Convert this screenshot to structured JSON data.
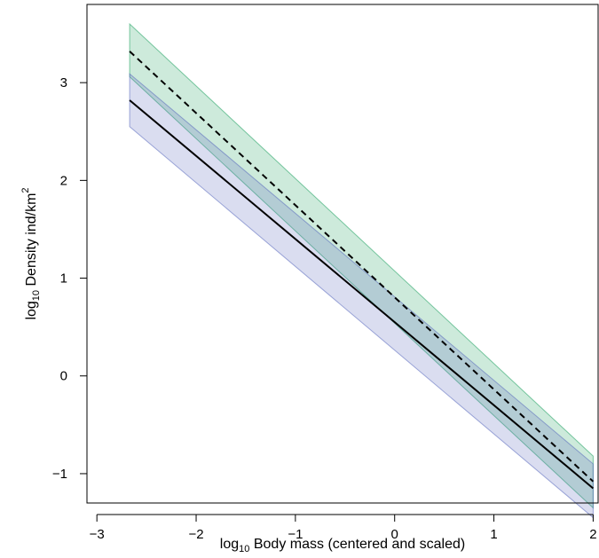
{
  "chart_data": {
    "type": "line",
    "xlabel": {
      "prefix": "log",
      "sub": "10",
      "rest": " Body mass (centered and scaled)"
    },
    "ylabel": {
      "prefix": "log",
      "sub": "10",
      "rest": " Density ind/km",
      "sup": "2"
    },
    "xlim": [
      -3.1,
      2.05
    ],
    "ylim": [
      -1.3,
      3.8
    ],
    "xticks": [
      -3,
      -2,
      -1,
      0,
      1,
      2
    ],
    "yticks": [
      -1,
      0,
      1,
      2,
      3
    ],
    "xtick_labels": [
      "−3",
      "−2",
      "−1",
      "0",
      "1",
      "2"
    ],
    "ytick_labels": [
      "−1",
      "0",
      "1",
      "2",
      "3"
    ],
    "grid": false,
    "series": [
      {
        "line_style": "dashed",
        "line_color": "#000000",
        "band_color": "#1a9e5c",
        "band_opacity": 0.22,
        "x": [
          -2.67,
          2.0
        ],
        "y": [
          3.32,
          -1.08
        ],
        "lower": [
          3.06,
          -1.35
        ],
        "upper": [
          3.6,
          -0.82
        ]
      },
      {
        "line_style": "solid",
        "line_color": "#000000",
        "band_color": "#5566bb",
        "band_opacity": 0.22,
        "x": [
          -2.67,
          2.0
        ],
        "y": [
          2.82,
          -1.15
        ],
        "lower": [
          2.55,
          -1.45
        ],
        "upper": [
          3.09,
          -0.9
        ]
      }
    ]
  }
}
